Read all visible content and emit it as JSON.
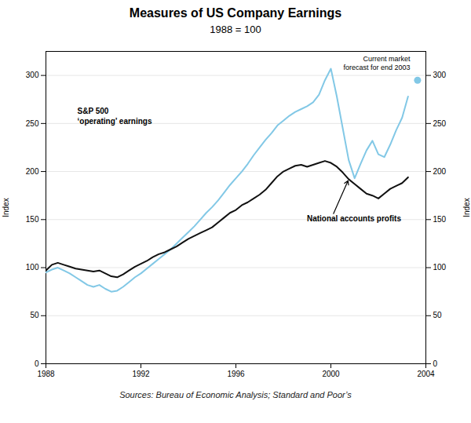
{
  "chart_data": {
    "type": "line",
    "title": "Measures of US Company Earnings",
    "subtitle": "1988 = 100",
    "source": "Sources: Bureau of Economic Analysis; Standard and Poor’s",
    "ylabel": "Index",
    "y2label": "Index",
    "xlim": [
      1988,
      2004
    ],
    "xticks": [
      1988,
      1992,
      1996,
      2000,
      2004
    ],
    "ylim": [
      0,
      325
    ],
    "yticks": [
      0,
      50,
      100,
      150,
      200,
      250,
      300
    ],
    "y2lim": [
      0,
      325
    ],
    "y2ticks": [
      0,
      50,
      100,
      150,
      200,
      250,
      300
    ],
    "grid": true,
    "annotations": [
      "S&P 500\n‘operating’ earnings",
      "National accounts profits",
      "Current market\nforecast for end 2003"
    ],
    "series": [
      {
        "type": "line",
        "color": "#111111",
        "x": [
          1988.0,
          1988.25,
          1988.5,
          1988.75,
          1989.0,
          1989.25,
          1989.5,
          1989.75,
          1990.0,
          1990.25,
          1990.5,
          1990.75,
          1991.0,
          1991.25,
          1991.5,
          1991.75,
          1992.0,
          1992.25,
          1992.5,
          1992.75,
          1993.0,
          1993.25,
          1993.5,
          1993.75,
          1994.0,
          1994.25,
          1994.5,
          1994.75,
          1995.0,
          1995.25,
          1995.5,
          1995.75,
          1996.0,
          1996.25,
          1996.5,
          1996.75,
          1997.0,
          1997.25,
          1997.5,
          1997.75,
          1998.0,
          1998.25,
          1998.5,
          1998.75,
          1999.0,
          1999.25,
          1999.5,
          1999.75,
          2000.0,
          2000.25,
          2000.5,
          2000.75,
          2001.0,
          2001.25,
          2001.5,
          2001.75,
          2002.0,
          2002.25,
          2002.5,
          2002.75,
          2003.0,
          2003.25
        ],
        "values": [
          97,
          103,
          105,
          103,
          101,
          99,
          98,
          97,
          96,
          97,
          94,
          91,
          90,
          93,
          97,
          101,
          104,
          107,
          111,
          114,
          116,
          119,
          122,
          126,
          130,
          133,
          136,
          139,
          142,
          147,
          152,
          157,
          160,
          165,
          168,
          172,
          176,
          181,
          188,
          195,
          200,
          203,
          206,
          207,
          205,
          207,
          209,
          211,
          209,
          205,
          199,
          192,
          187,
          182,
          177,
          175,
          172,
          177,
          182,
          185,
          188,
          194
        ]
      },
      {
        "type": "line",
        "color": "#82c8e6",
        "x": [
          1988.0,
          1988.25,
          1988.5,
          1988.75,
          1989.0,
          1989.25,
          1989.5,
          1989.75,
          1990.0,
          1990.25,
          1990.5,
          1990.75,
          1991.0,
          1991.25,
          1991.5,
          1991.75,
          1992.0,
          1992.25,
          1992.5,
          1992.75,
          1993.0,
          1993.25,
          1993.5,
          1993.75,
          1994.0,
          1994.25,
          1994.5,
          1994.75,
          1995.0,
          1995.25,
          1995.5,
          1995.75,
          1996.0,
          1996.25,
          1996.5,
          1996.75,
          1997.0,
          1997.25,
          1997.5,
          1997.75,
          1998.0,
          1998.25,
          1998.5,
          1998.75,
          1999.0,
          1999.25,
          1999.5,
          1999.75,
          2000.0,
          2000.25,
          2000.5,
          2000.75,
          2001.0,
          2001.25,
          2001.5,
          2001.75,
          2002.0,
          2002.25,
          2002.5,
          2002.75,
          2003.0,
          2003.25
        ],
        "values": [
          95,
          98,
          100,
          97,
          94,
          90,
          86,
          82,
          80,
          82,
          78,
          75,
          76,
          80,
          85,
          90,
          94,
          99,
          104,
          109,
          114,
          119,
          125,
          131,
          137,
          143,
          150,
          157,
          163,
          170,
          178,
          186,
          193,
          200,
          208,
          217,
          225,
          233,
          240,
          248,
          253,
          258,
          262,
          265,
          268,
          272,
          280,
          295,
          307,
          278,
          245,
          212,
          193,
          208,
          222,
          232,
          218,
          215,
          228,
          243,
          256,
          278
        ]
      },
      {
        "type": "scatter",
        "color": "#82c8e6",
        "x": [
          2003.65
        ],
        "values": [
          295
        ]
      }
    ]
  }
}
